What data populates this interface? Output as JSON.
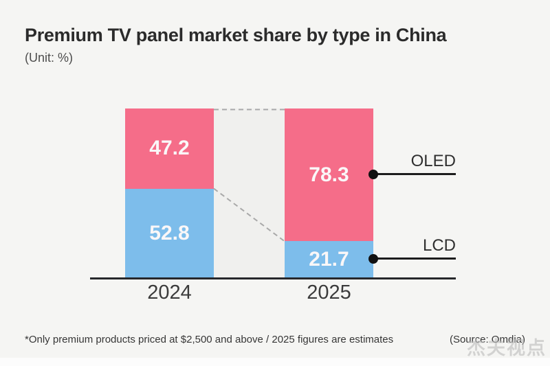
{
  "header": {
    "title": "Premium TV panel market share by type in China",
    "unit": "(Unit: %)"
  },
  "chart_data": {
    "type": "bar",
    "subtype": "100-percent-stacked",
    "categories": [
      "2024",
      "2025"
    ],
    "series": [
      {
        "name": "OLED",
        "color": "#f56d89",
        "values": [
          47.2,
          78.3
        ]
      },
      {
        "name": "LCD",
        "color": "#7dbdeb",
        "values": [
          52.8,
          21.7
        ]
      }
    ],
    "ylim": [
      0,
      100
    ],
    "value_labels": "inside-center",
    "legend_position": "right-callouts"
  },
  "footer": {
    "note": "*Only premium products priced at $2,500 and above / 2025 figures are estimates",
    "source": "(Source: Omdia)"
  },
  "watermark": "杰夫视点"
}
